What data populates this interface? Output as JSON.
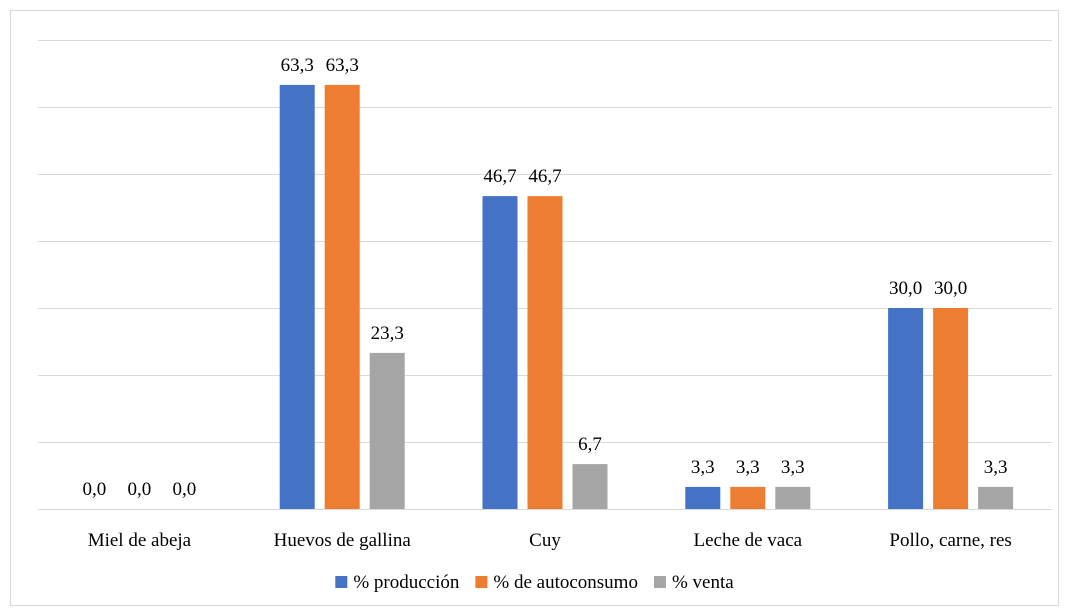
{
  "chart_data": {
    "type": "bar",
    "categories": [
      "Miel de abeja",
      "Huevos de gallina",
      "Cuy",
      "Leche de vaca",
      "Pollo, carne, res"
    ],
    "series": [
      {
        "name": "% producción",
        "values": [
          0.0,
          63.3,
          46.7,
          3.3,
          30.0
        ],
        "labels": [
          "0,0",
          "63,3",
          "46,7",
          "3,3",
          "30,0"
        ],
        "color": "#4472C4"
      },
      {
        "name": "% de autoconsumo",
        "values": [
          0.0,
          63.3,
          46.7,
          3.3,
          30.0
        ],
        "labels": [
          "0,0",
          "63,3",
          "46,7",
          "3,3",
          "30,0"
        ],
        "color": "#ED7D31"
      },
      {
        "name": "% venta",
        "values": [
          0.0,
          23.3,
          6.7,
          3.3,
          3.3
        ],
        "labels": [
          "0,0",
          "23,3",
          "6,7",
          "3,3",
          "3,3"
        ],
        "color": "#A5A5A5"
      }
    ],
    "ylim": [
      0,
      70
    ],
    "gridlines": true,
    "gridline_step": 10,
    "legend_position": "bottom",
    "title": "",
    "xlabel": "",
    "ylabel": ""
  }
}
